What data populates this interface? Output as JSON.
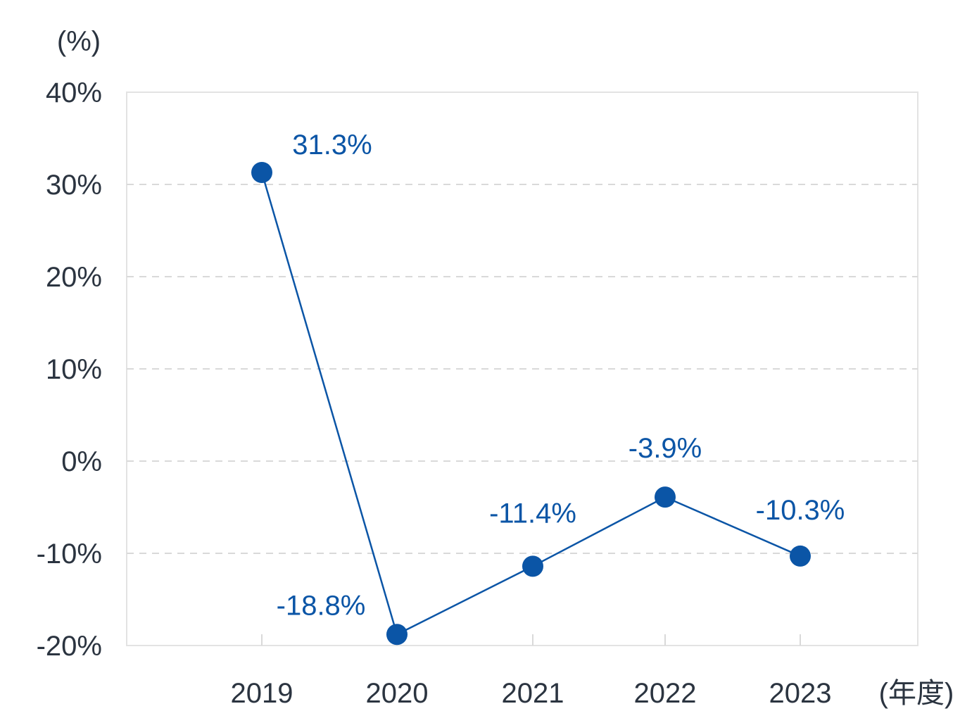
{
  "chart_data": {
    "type": "line",
    "y_unit_label": "(%)",
    "x_unit_label": "(年度)",
    "categories": [
      "2019",
      "2020",
      "2021",
      "2022",
      "2023"
    ],
    "series": [
      {
        "values": [
          31.3,
          -18.8,
          -11.4,
          -3.9,
          -10.3
        ],
        "labels": [
          "31.3%",
          "-18.8%",
          "-11.4%",
          "-3.9%",
          "-10.3%"
        ]
      }
    ],
    "ylim": [
      -20,
      40
    ],
    "yticks": [
      40,
      30,
      20,
      10,
      0,
      -10,
      -20
    ],
    "ytick_labels": [
      "40%",
      "30%",
      "20%",
      "10%",
      "0%",
      "-10%",
      "-20%"
    ],
    "grid": true,
    "colors": {
      "line": "#0b55a6",
      "marker": "#0b55a6",
      "label": "#0b55a6",
      "grid": "#d9d9d9",
      "frame": "#e3e3e3",
      "text": "#2b3440"
    }
  }
}
